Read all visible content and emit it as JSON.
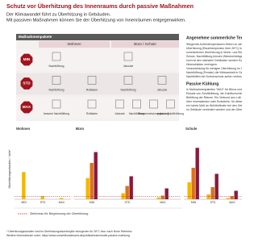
{
  "header": {
    "title": "Schutz vor Überhitzung des Innenraums durch passive Maßnahmen",
    "subtitle": [
      "Der Klimawandel führt zu Überhitzung in Gebäuden.",
      "Mit passiven Maßnahmen können Sie der Überhitzung von Innenräumen entgegenwirken."
    ]
  },
  "packages": {
    "title": "Maßnahmenpakete",
    "columns": [
      "Wohnen",
      "Büro / Schule"
    ],
    "rows": [
      {
        "level": "MIN",
        "wohnen": [
          "Nachtlüftung"
        ],
        "buero": [
          "Jalousie"
        ]
      },
      {
        "level": "STD",
        "wohnen": [
          "Nachtlüftung",
          "Rollladen"
        ],
        "buero": [
          "Nachtlüftung",
          "Jalousie"
        ]
      },
      {
        "level": "MAX",
        "wohnen": [
          "bessere Nachtlüftung",
          "Rollladen"
        ],
        "buero": [
          "Jalousie",
          "Nachtlüftung",
          "Sonnenschutzverglasung",
          "passive Zuluftkühlung"
        ]
      }
    ]
  },
  "sidebar": {
    "heading": "Angenehme sommerliche Temperat",
    "lines": [
      "Steigende Außentemperaturen führen zu steigen",
      "Überhitzung (Raumtemperatur über 26°C) ist d",
      "sommerlichen Überhitzung in Wohn- und Bürog",
      "Schutz, Nachtlüftung können Wärmeeinträge redu",
      "hoch ist den nächsten Gebäuden werden Kosten",
      "Hitzeschäden verringern.",
      "Voraussetzung für wenigen Überhitzung im Sommer",
      "Nachtlüftung (Fenster) die Wirksamkeit in Gebä",
      "Nachtlüften bei Sonnenschutz außen verbessert."
    ],
    "heading2": "Passive Kühlung",
    "lines2": [
      "In Maßnahmenpaketen \"MAX\" für Büros und Schulen",
      "Einsatz von Zuluftkühlung, die Zuluftvorschichten w",
      "Belüftung der Räume. Ein Verbund aus Luft-",
      "über Innenwänden oder Erdwärme, für diese Nutzu",
      "ein hohes Maß an Wohlbefinden bei den Gebäudeth",
      "im Gebäude verhindert werden und der Überhitzung"
    ]
  },
  "charts": {
    "y_label": "Überhitzungsstunden / Jahr*",
    "ylim": [
      0,
      100
    ],
    "threshold": 5,
    "legend": "Zielniveau für Begrenzung der Überhitzung",
    "panels": [
      {
        "title": "Wohnen",
        "categories": [
          "MIN",
          "STD",
          "MAX"
        ],
        "series": [
          {
            "color": "#f2b705",
            "values": [
              45,
              5,
              2
            ]
          }
        ]
      },
      {
        "title": "Büro",
        "categories": [
          "MIN",
          "STD",
          "MAX"
        ],
        "series": [
          {
            "color": "#f2b705",
            "values": [
              35,
              10,
              3
            ]
          },
          {
            "color": "#d9731a",
            "values": [
              60,
              22,
              6
            ]
          },
          {
            "color": "#8b1a3a",
            "values": [
              78,
              38,
              18
            ]
          }
        ]
      },
      {
        "title": "Schule",
        "categories": [
          "MIN",
          "STD",
          "MAX"
        ],
        "series": [
          {
            "color": "#f2b705",
            "values": [
              28,
              8,
              2
            ]
          },
          {
            "color": "#d9731a",
            "values": [
              52,
              20,
              5
            ]
          },
          {
            "color": "#8b1a3a",
            "values": [
              85,
              42,
              14
            ]
          }
        ]
      }
    ]
  },
  "footnote": [
    "* Überhitzungsstunden sind im Überhitzungsstundenjahr bezogenen für 26°C bzw. nach Norm Referenz",
    "Weitere Informationen unter: https://www.umweltbundesamt.de/publikationen/studie-passive-kuehlung"
  ]
}
